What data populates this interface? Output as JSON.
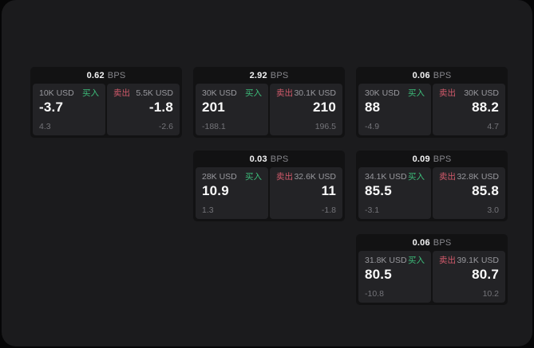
{
  "labels": {
    "bps_suffix": "BPS",
    "buy_label": "买入",
    "sell_label": "卖出"
  },
  "colors": {
    "buy_green": "#3dbd7a",
    "sell_red": "#d25a6b",
    "panel_background": "#1b1b1d",
    "card_background": "#121213",
    "tile_background": "#232326"
  },
  "cards": [
    {
      "bps": "0.62",
      "buy": {
        "amount": "10K USD",
        "value": "-3.7",
        "sub": "4.3"
      },
      "sell": {
        "amount": "5.5K USD",
        "value": "-1.8",
        "sub": "-2.6"
      }
    },
    {
      "bps": "2.92",
      "buy": {
        "amount": "30K USD",
        "value": "201",
        "sub": "-188.1"
      },
      "sell": {
        "amount": "30.1K USD",
        "value": "210",
        "sub": "196.5"
      }
    },
    {
      "bps": "0.06",
      "buy": {
        "amount": "30K USD",
        "value": "88",
        "sub": "-4.9"
      },
      "sell": {
        "amount": "30K USD",
        "value": "88.2",
        "sub": "4.7"
      }
    },
    {
      "bps": "0.03",
      "buy": {
        "amount": "28K USD",
        "value": "10.9",
        "sub": "1.3"
      },
      "sell": {
        "amount": "32.6K USD",
        "value": "11",
        "sub": "-1.8"
      }
    },
    {
      "bps": "0.09",
      "buy": {
        "amount": "34.1K USD",
        "value": "85.5",
        "sub": "-3.1"
      },
      "sell": {
        "amount": "32.8K USD",
        "value": "85.8",
        "sub": "3.0"
      }
    },
    {
      "bps": "0.06",
      "buy": {
        "amount": "31.8K USD",
        "value": "80.5",
        "sub": "-10.8"
      },
      "sell": {
        "amount": "39.1K USD",
        "value": "80.7",
        "sub": "10.2"
      }
    }
  ]
}
